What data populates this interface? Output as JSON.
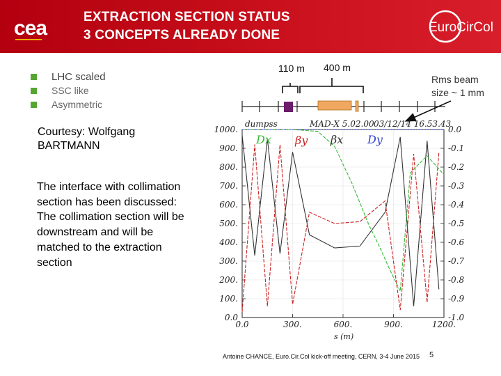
{
  "header": {
    "title_line1": "EXTRACTION SECTION STATUS",
    "title_line2": "3 CONCEPTS ALREADY DONE",
    "left_logo": "cea",
    "right_logo": "EuroCirCol",
    "accent_color": "#c9101c"
  },
  "bullets": [
    "LHC scaled",
    "SSC like",
    "Asymmetric"
  ],
  "courtesy": "Courtesy: Wolfgang BARTMANN",
  "interface_text": "The interface with collimation section has been discussed: The collimation section will be downstream and will be matched to the extraction section",
  "annotations": {
    "label_110": "110 m",
    "label_400": "400 m",
    "rms": "Rms beam size ~ 1 mm"
  },
  "footer": {
    "text": "Antoine CHANCE, Euro.Cir.Col kick-off meeting, CERN, 3-4 June 2015",
    "page": "5"
  },
  "chart_data": {
    "type": "line",
    "header_left": "dumpss",
    "header_center": "MAD-X 5.02.00",
    "header_right": "03/12/14 16.53.43",
    "xlabel": "s (m)",
    "xlim": [
      0,
      1200
    ],
    "x_ticks": [
      "0.0",
      "300.",
      "600.",
      "900.",
      "1200."
    ],
    "ylim_left": [
      0,
      1000
    ],
    "y_ticks_left": [
      "1000.",
      "900.",
      "800.",
      "700.",
      "600.",
      "500.",
      "400.",
      "300.",
      "200.",
      "100.",
      "0.0"
    ],
    "ylim_right": [
      -1.0,
      0.0
    ],
    "y_ticks_right": [
      "0.0",
      "-0.1",
      "-0.2",
      "-0.3",
      "-0.4",
      "-0.5",
      "-0.6",
      "-0.7",
      "-0.8",
      "-0.9",
      "-1.0"
    ],
    "legend": [
      "βx",
      "βy",
      "Dx",
      "Dy"
    ],
    "series": [
      {
        "name": "βx",
        "color": "#333333",
        "x": [
          0,
          75,
          150,
          225,
          300,
          400,
          550,
          700,
          850,
          940,
          1020,
          1100,
          1170
        ],
        "y": [
          970,
          330,
          950,
          340,
          880,
          440,
          370,
          380,
          560,
          960,
          60,
          940,
          150
        ]
      },
      {
        "name": "βy",
        "color": "#cc2222",
        "x": [
          0,
          75,
          150,
          225,
          300,
          400,
          550,
          700,
          850,
          940,
          1020,
          1100,
          1170
        ],
        "y": [
          30,
          920,
          60,
          920,
          70,
          560,
          500,
          510,
          620,
          40,
          870,
          80,
          880
        ]
      },
      {
        "name": "Dx",
        "color": "#33bb33",
        "x": [
          0,
          300,
          450,
          550,
          650,
          750,
          820,
          880,
          940,
          1000,
          1100,
          1200
        ],
        "y": [
          0.0,
          0.0,
          -0.01,
          -0.09,
          -0.28,
          -0.5,
          -0.63,
          -0.75,
          -0.86,
          -0.23,
          -0.14,
          -0.24
        ]
      },
      {
        "name": "Dy",
        "color": "#3344cc",
        "x": [
          0,
          1200
        ],
        "y": [
          0.0,
          0.0
        ]
      }
    ]
  }
}
